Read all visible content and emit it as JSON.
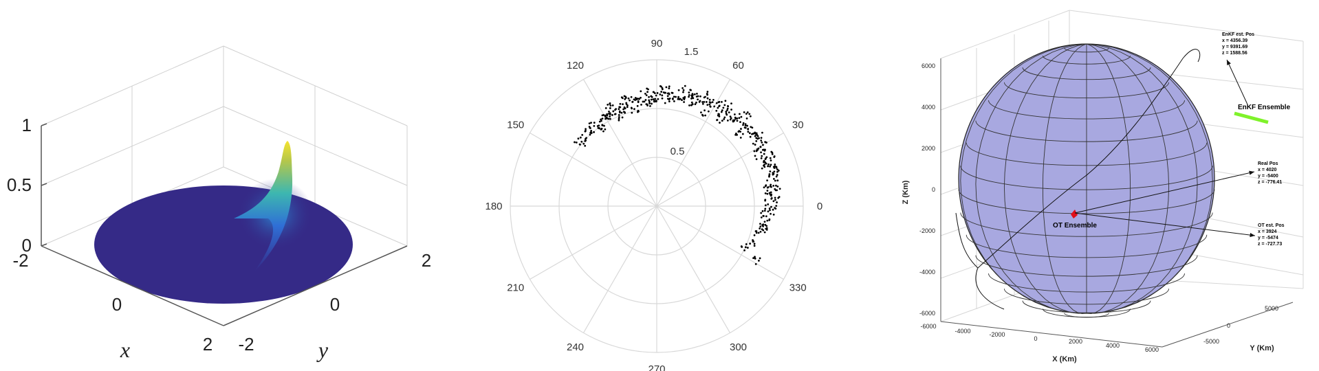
{
  "chart_data": [
    {
      "type": "surface",
      "xlabel": "x",
      "ylabel": "y",
      "x_ticks": [
        "-2",
        "0",
        "2"
      ],
      "y_ticks": [
        "-2",
        "0",
        "2"
      ],
      "z_ticks": [
        "0",
        "0.5",
        "1"
      ],
      "xlim": [
        -2,
        2
      ],
      "ylim": [
        -2,
        2
      ],
      "zlim": [
        0,
        1
      ],
      "domain": "disk of radius 2",
      "peak": {
        "x": 1.7,
        "y": -0.6,
        "z": 0.95
      },
      "colormap": "parula",
      "colors": {
        "base": "#352a87",
        "mid": "#4fb5c7",
        "high": "#f5e32f"
      }
    },
    {
      "type": "scatter",
      "coordinate_system": "polar",
      "theta_ticks": [
        "0",
        "30",
        "60",
        "90",
        "120",
        "150",
        "180",
        "210",
        "240",
        "270",
        "300",
        "330"
      ],
      "r_ticks": [
        "0.5",
        "1.5"
      ],
      "rlim": [
        0,
        1.5
      ],
      "grid": true,
      "point_color": "#000000",
      "series": [
        {
          "theta": [
            -20,
            -15,
            -12,
            -10,
            -8,
            -5,
            -3,
            0,
            2,
            5,
            8,
            10,
            12,
            15,
            18,
            20,
            22,
            25,
            28,
            30,
            32,
            35,
            38,
            40,
            42,
            45,
            48,
            50,
            52,
            55,
            58,
            60,
            62,
            65,
            68,
            70,
            72,
            75,
            78,
            80,
            82,
            85,
            88,
            90,
            92,
            95,
            98,
            100,
            102,
            105,
            108,
            110,
            112,
            115,
            118,
            120,
            125,
            130,
            -28,
            14,
            24,
            36,
            46,
            56,
            66,
            76,
            86,
            96,
            106,
            116,
            122,
            128,
            135,
            140,
            -25,
            6,
            17,
            27,
            41,
            53,
            63,
            73,
            83,
            93,
            103,
            113,
            124,
            138
          ],
          "r": [
            1.05,
            1.08,
            1.1,
            1.12,
            1.15,
            1.1,
            1.18,
            1.12,
            1.2,
            1.15,
            1.18,
            1.22,
            1.15,
            1.2,
            1.25,
            1.18,
            1.22,
            1.2,
            1.25,
            1.22,
            1.28,
            1.2,
            1.25,
            1.22,
            1.18,
            1.25,
            1.2,
            1.22,
            1.18,
            1.2,
            1.15,
            1.22,
            1.18,
            1.2,
            1.15,
            1.18,
            1.2,
            1.15,
            1.18,
            1.12,
            1.15,
            1.18,
            1.12,
            1.15,
            1.1,
            1.12,
            1.08,
            1.1,
            1.08,
            1.12,
            1.05,
            1.08,
            1.05,
            1.1,
            1.02,
            1.05,
            1.0,
            1.02,
            1.15,
            1.28,
            1.3,
            1.28,
            1.3,
            1.27,
            1.25,
            1.23,
            1.2,
            1.18,
            1.14,
            1.12,
            1.08,
            1.06,
            1.04,
            1.03,
            1.0,
            1.25,
            1.26,
            1.15,
            1.12,
            1.1,
            1.08,
            1.12,
            1.08,
            1.05,
            1.02,
            1.0,
            0.98,
            0.98
          ]
        }
      ]
    },
    {
      "type": "3d-sphere",
      "xlabel": "X (Km)",
      "ylabel": "Y (Km)",
      "zlabel": "Z (Km)",
      "x_ticks": [
        "-6000",
        "-4000",
        "-2000",
        "0",
        "2000",
        "4000",
        "6000"
      ],
      "y_ticks": [
        "-5000",
        "0",
        "5000"
      ],
      "z_ticks": [
        "-6000",
        "-4000",
        "-2000",
        "0",
        "2000",
        "4000",
        "6000"
      ],
      "sphere_color": "#a8a8e0",
      "annotations": [
        {
          "label": "EnKF Ensemble",
          "lines": [
            "EnKF est. Pos",
            "x = 4356.39",
            "y = 9391.69",
            "z = 1588.56"
          ],
          "color": "#7ff22a"
        },
        {
          "label": "",
          "lines": [
            "Real Pos",
            "x = 4020",
            "y = -5400",
            "z = -776.41"
          ],
          "color": "#000000"
        },
        {
          "label": "OT Ensemble",
          "lines": [
            "OT est. Pos",
            "x = 3924",
            "y = -5474",
            "z = -727.73"
          ],
          "color": "#e0101a"
        }
      ]
    }
  ]
}
